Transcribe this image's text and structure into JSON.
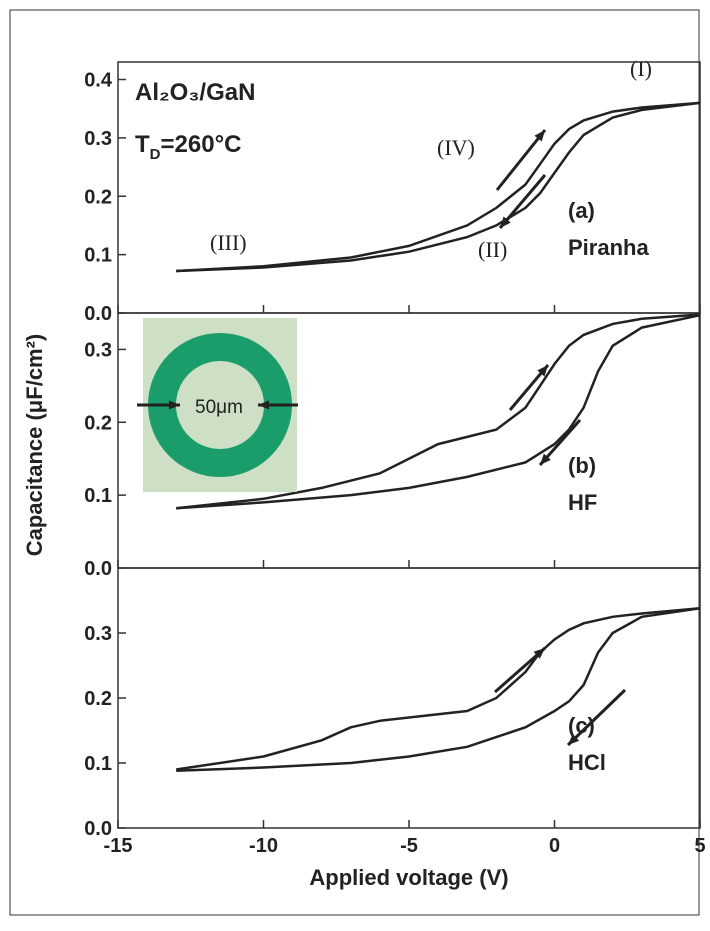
{
  "chart_data": [
    {
      "type": "line",
      "xlim": [
        -15,
        5
      ],
      "xticks": [
        -15,
        -10,
        -5,
        0,
        5
      ],
      "ylim": [
        0,
        0.43
      ],
      "yticks": [
        {
          "value": 0,
          "label": "0.0"
        },
        0.1,
        0.2,
        0.3,
        0.4
      ],
      "material_label": "Al₂O₃/GaN",
      "temperature_label": {
        "base": "T",
        "sub": "D",
        "rest": "=260°C"
      },
      "panel_label": "(a)",
      "treatment_label": "Piranha",
      "sweep_labels": [
        "(I)",
        "(II)",
        "(III)",
        "(IV)"
      ],
      "series": [
        {
          "color": "#222222",
          "x": [
            -13,
            -10,
            -7,
            -5,
            -3,
            -2,
            -1,
            -0.5,
            0,
            0.5,
            1,
            2,
            3,
            5
          ],
          "values": [
            0.072,
            0.08,
            0.095,
            0.115,
            0.15,
            0.18,
            0.22,
            0.255,
            0.29,
            0.315,
            0.33,
            0.345,
            0.352,
            0.36
          ]
        },
        {
          "color": "#222222",
          "x": [
            -13,
            -10,
            -7,
            -5,
            -3,
            -2,
            -1,
            -0.5,
            0,
            0.5,
            1,
            2,
            3,
            5
          ],
          "values": [
            0.072,
            0.078,
            0.09,
            0.105,
            0.13,
            0.15,
            0.18,
            0.205,
            0.24,
            0.275,
            0.305,
            0.335,
            0.348,
            0.36
          ]
        }
      ]
    },
    {
      "type": "line",
      "xlim": [
        -15,
        5
      ],
      "xticks": [
        -15,
        -10,
        -5,
        0,
        5
      ],
      "ylim": [
        0,
        0.35
      ],
      "yticks": [
        {
          "value": 0,
          "label": "0.0"
        },
        0.1,
        0.2,
        0.3
      ],
      "y_label": "Capacitance (μF/cm²)",
      "inset_label": "50μm",
      "panel_label": "(b)",
      "treatment_label": "HF",
      "series": [
        {
          "color": "#222222",
          "x": [
            -13,
            -10,
            -8,
            -6,
            -4,
            -3,
            -2,
            -1,
            -0.5,
            0,
            0.5,
            1,
            2,
            3,
            5
          ],
          "values": [
            0.082,
            0.095,
            0.11,
            0.13,
            0.17,
            0.18,
            0.19,
            0.22,
            0.25,
            0.28,
            0.305,
            0.32,
            0.335,
            0.342,
            0.348
          ]
        },
        {
          "color": "#222222",
          "x": [
            -13,
            -10,
            -7,
            -5,
            -3,
            -1,
            0,
            0.5,
            1,
            1.5,
            2,
            3,
            5
          ],
          "values": [
            0.082,
            0.09,
            0.1,
            0.11,
            0.125,
            0.145,
            0.17,
            0.19,
            0.22,
            0.27,
            0.305,
            0.33,
            0.347
          ]
        }
      ]
    },
    {
      "type": "line",
      "xlim": [
        -15,
        5
      ],
      "xticks": [
        -15,
        -10,
        -5,
        0,
        5
      ],
      "ylim": [
        0,
        0.4
      ],
      "yticks": [
        {
          "value": 0,
          "label": "0.0"
        },
        0.1,
        0.2,
        0.3
      ],
      "x_label": "Applied voltage (V)",
      "panel_label": "(c)",
      "treatment_label": "HCl",
      "series": [
        {
          "color": "#222222",
          "x": [
            -13,
            -10,
            -8,
            -7,
            -6,
            -4,
            -3,
            -2,
            -1,
            -0.5,
            0,
            0.5,
            1,
            2,
            3,
            5
          ],
          "values": [
            0.09,
            0.11,
            0.135,
            0.155,
            0.165,
            0.175,
            0.18,
            0.2,
            0.24,
            0.27,
            0.29,
            0.305,
            0.315,
            0.325,
            0.33,
            0.338
          ]
        },
        {
          "color": "#222222",
          "x": [
            -13,
            -10,
            -7,
            -5,
            -3,
            -1,
            0,
            0.5,
            1,
            1.5,
            2,
            3,
            5
          ],
          "values": [
            0.088,
            0.093,
            0.1,
            0.11,
            0.125,
            0.155,
            0.18,
            0.195,
            0.22,
            0.27,
            0.3,
            0.325,
            0.338
          ]
        }
      ]
    }
  ]
}
